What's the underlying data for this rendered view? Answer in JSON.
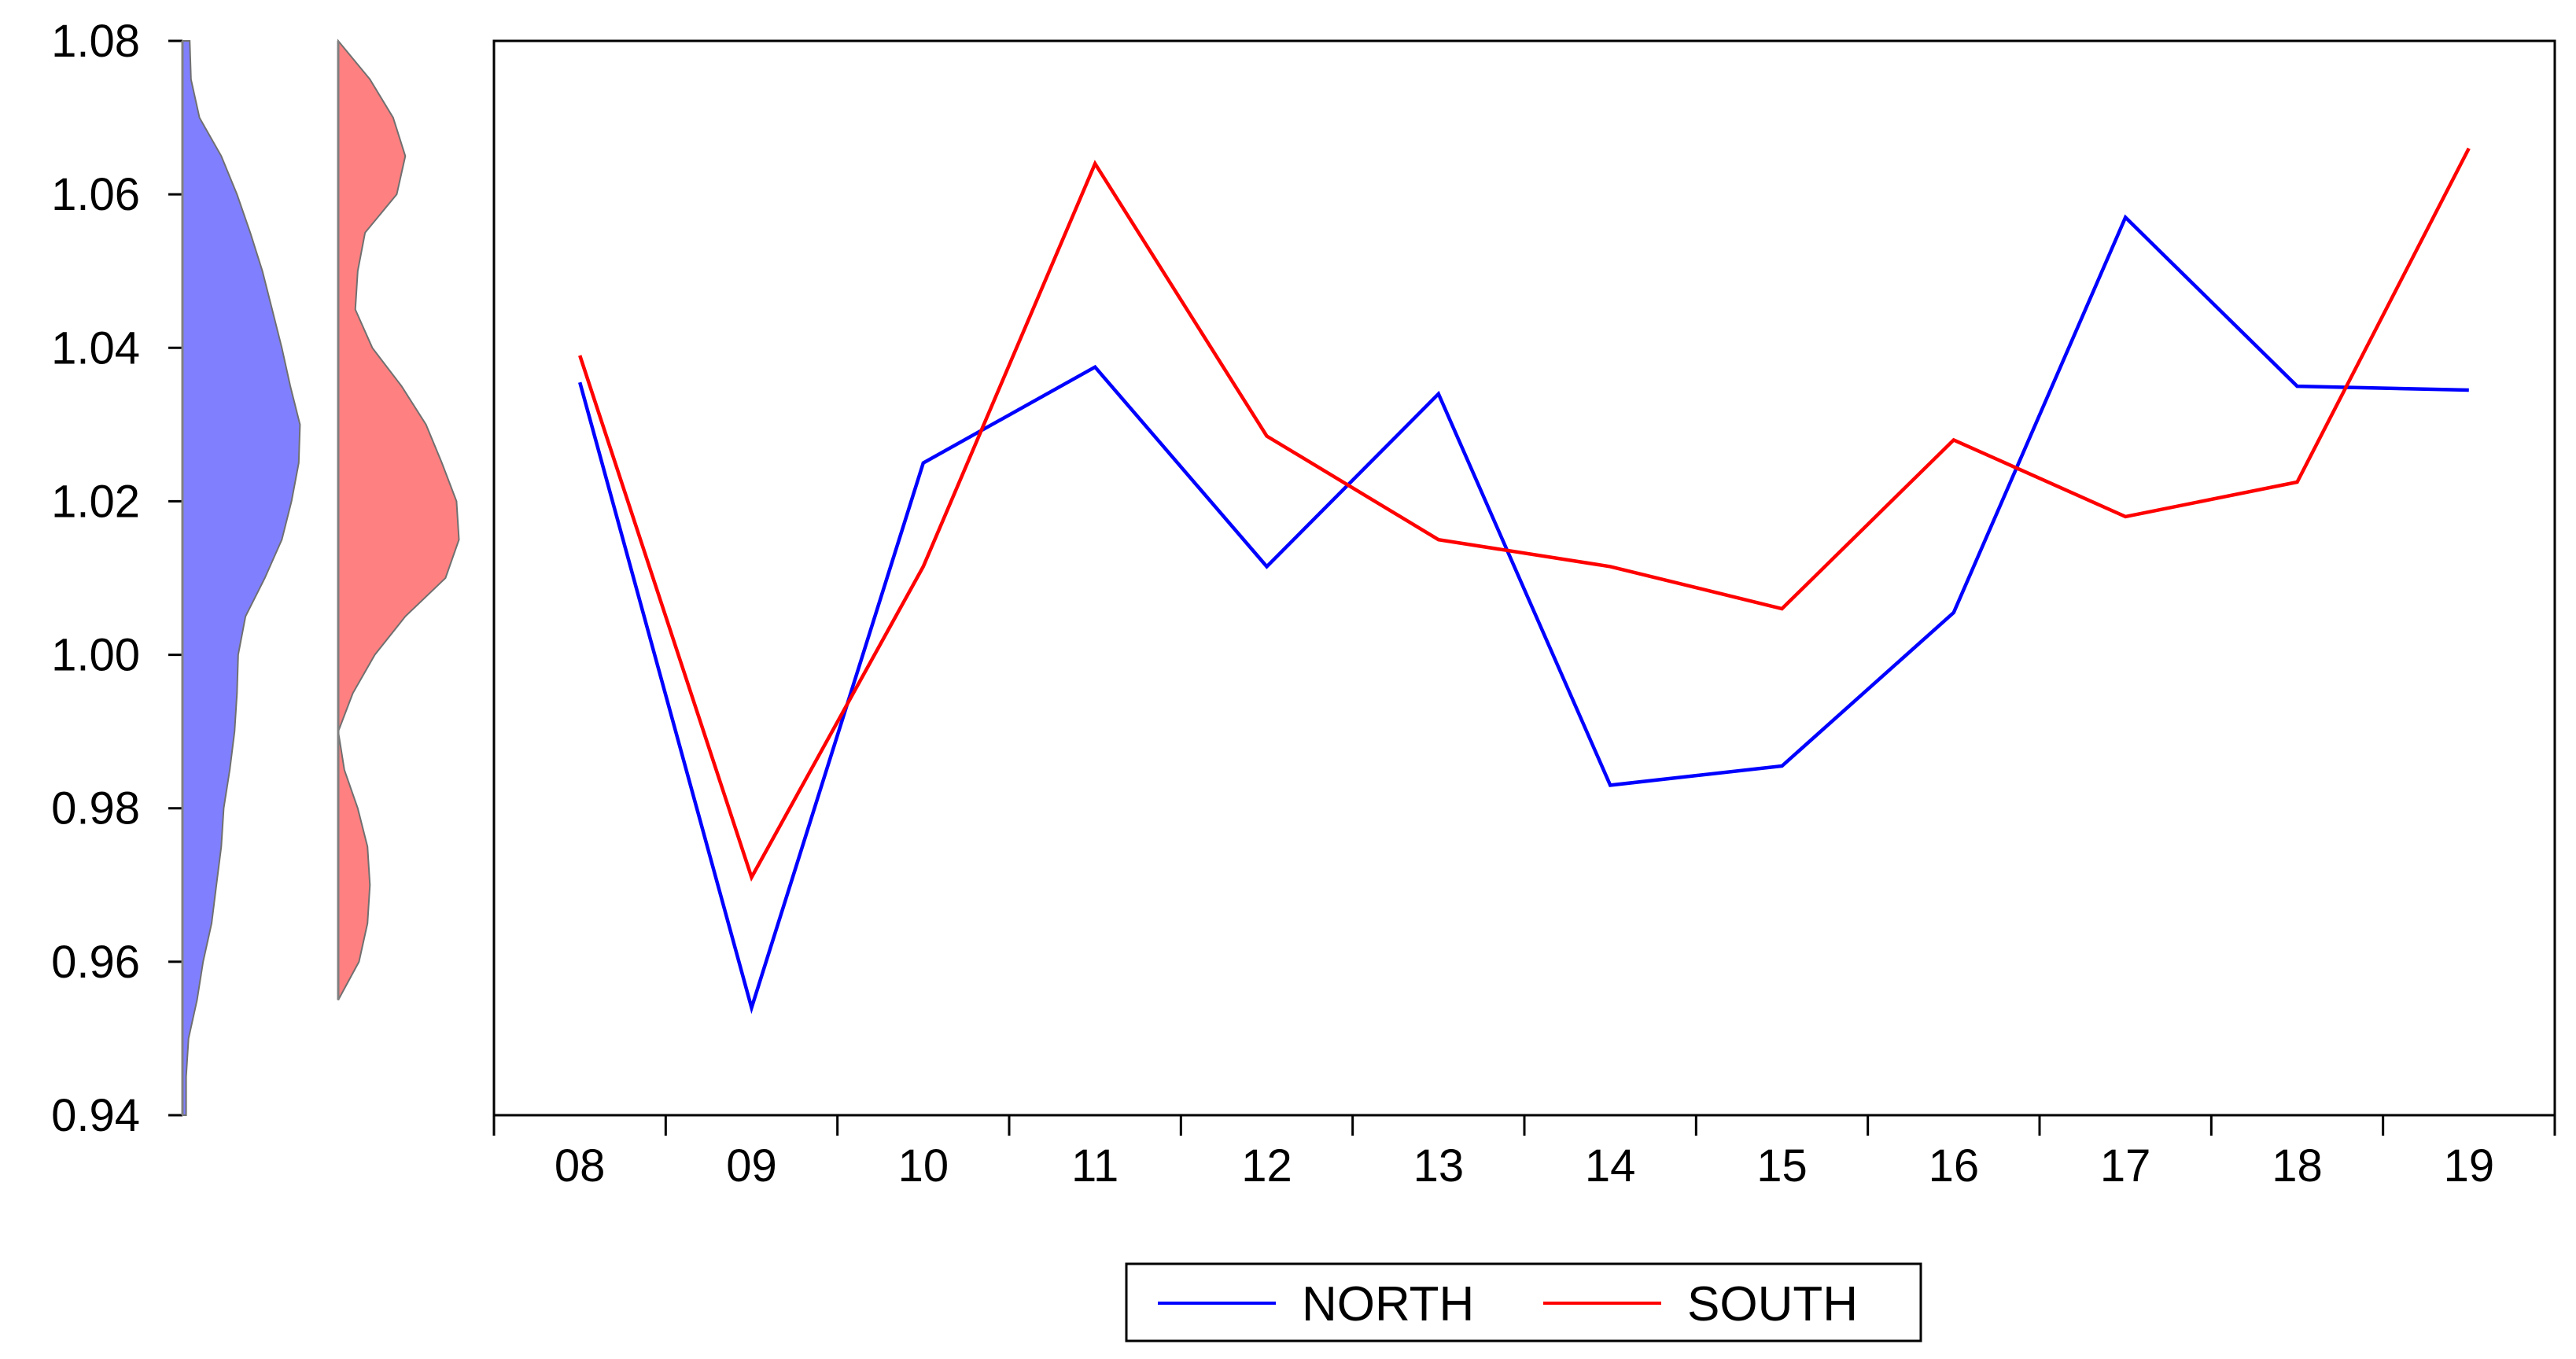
{
  "chart_data": {
    "type": "line",
    "title": "",
    "xlabel": "",
    "ylabel": "",
    "ylim": [
      0.94,
      1.08
    ],
    "y_ticks": [
      "1.08",
      "1.06",
      "1.04",
      "1.02",
      "1.00",
      "0.98",
      "0.96",
      "0.94"
    ],
    "y_tick_values": [
      1.08,
      1.06,
      1.04,
      1.02,
      1.0,
      0.98,
      0.96,
      0.94
    ],
    "categories": [
      "08",
      "09",
      "10",
      "11",
      "12",
      "13",
      "14",
      "15",
      "16",
      "17",
      "18",
      "19"
    ],
    "series": [
      {
        "name": "NORTH",
        "color": "#0000ff",
        "values": [
          1.0355,
          0.954,
          1.025,
          1.0375,
          1.0115,
          1.034,
          0.983,
          0.9855,
          1.0055,
          1.057,
          1.035,
          1.0345
        ]
      },
      {
        "name": "SOUTH",
        "color": "#ff0000",
        "values": [
          1.039,
          0.971,
          1.0115,
          1.064,
          1.0285,
          1.015,
          1.0115,
          1.006,
          1.028,
          1.018,
          1.0225,
          1.066
        ]
      }
    ],
    "marginal_densities": [
      {
        "series": "NORTH",
        "fill_color": "#8080ff",
        "shape": "kernel density of NORTH, drawn sideways against the shared y axis",
        "profile": [
          [
            1.08,
            0.06
          ],
          [
            1.075,
            0.07
          ],
          [
            1.07,
            0.14
          ],
          [
            1.065,
            0.32
          ],
          [
            1.06,
            0.45
          ],
          [
            1.055,
            0.56
          ],
          [
            1.05,
            0.66
          ],
          [
            1.045,
            0.74
          ],
          [
            1.04,
            0.82
          ],
          [
            1.035,
            0.89
          ],
          [
            1.03,
            0.97
          ],
          [
            1.025,
            0.96
          ],
          [
            1.02,
            0.9
          ],
          [
            1.015,
            0.82
          ],
          [
            1.01,
            0.68
          ],
          [
            1.005,
            0.52
          ],
          [
            1.0,
            0.46
          ],
          [
            0.995,
            0.45
          ],
          [
            0.99,
            0.43
          ],
          [
            0.985,
            0.39
          ],
          [
            0.98,
            0.34
          ],
          [
            0.975,
            0.32
          ],
          [
            0.97,
            0.28
          ],
          [
            0.965,
            0.24
          ],
          [
            0.96,
            0.17
          ],
          [
            0.955,
            0.12
          ],
          [
            0.95,
            0.05
          ],
          [
            0.945,
            0.03
          ],
          [
            0.94,
            0.03
          ]
        ]
      },
      {
        "series": "SOUTH",
        "fill_color": "#ff8080",
        "shape": "kernel density of SOUTH, drawn sideways against the shared y axis",
        "profile": [
          [
            1.08,
            0.0
          ],
          [
            1.075,
            0.26
          ],
          [
            1.07,
            0.45
          ],
          [
            1.065,
            0.55
          ],
          [
            1.06,
            0.48
          ],
          [
            1.055,
            0.22
          ],
          [
            1.05,
            0.16
          ],
          [
            1.045,
            0.14
          ],
          [
            1.04,
            0.28
          ],
          [
            1.035,
            0.52
          ],
          [
            1.03,
            0.72
          ],
          [
            1.025,
            0.85
          ],
          [
            1.02,
            0.97
          ],
          [
            1.015,
            0.99
          ],
          [
            1.01,
            0.88
          ],
          [
            1.005,
            0.55
          ],
          [
            1.0,
            0.3
          ],
          [
            0.995,
            0.12
          ],
          [
            0.99,
            0.0
          ],
          [
            0.985,
            0.05
          ],
          [
            0.98,
            0.16
          ],
          [
            0.975,
            0.24
          ],
          [
            0.97,
            0.26
          ],
          [
            0.965,
            0.24
          ],
          [
            0.96,
            0.17
          ],
          [
            0.955,
            0.0
          ]
        ]
      }
    ],
    "legend": {
      "position": "bottom-center",
      "entries": [
        {
          "label": "NORTH",
          "color": "#0000ff"
        },
        {
          "label": "SOUTH",
          "color": "#ff0000"
        }
      ]
    },
    "grid": false
  }
}
